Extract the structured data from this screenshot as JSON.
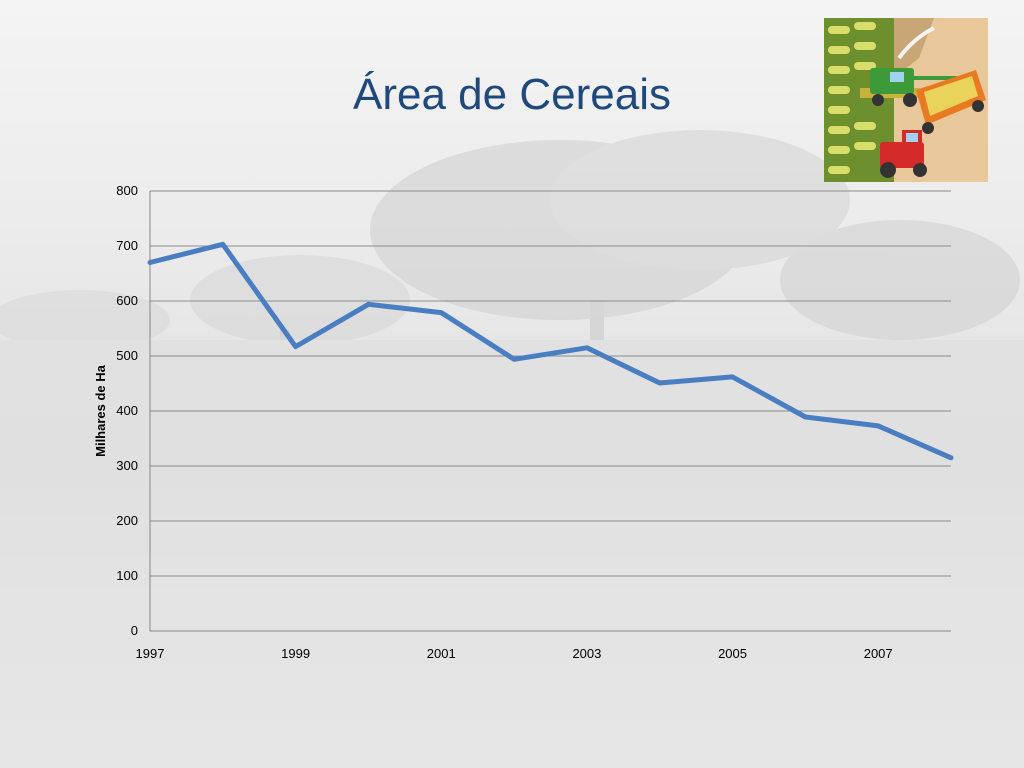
{
  "slide": {
    "title": "Área de Cereais",
    "clipart_icon": "harvest-tractors-icon"
  },
  "chart_data": {
    "type": "line",
    "ylabel": "Milhares de Ha",
    "xlabel": "",
    "ylim": [
      0,
      800
    ],
    "yticks": [
      0,
      100,
      200,
      300,
      400,
      500,
      600,
      700,
      800
    ],
    "xlim": [
      1997,
      2008
    ],
    "xticks": [
      1997,
      1999,
      2001,
      2003,
      2005,
      2007
    ],
    "grid": true,
    "legend": "none",
    "series": [
      {
        "color": "#4a7ec2",
        "x": [
          1997,
          1998,
          1999,
          2000,
          2001,
          2002,
          2003,
          2004,
          2005,
          2006,
          2007,
          2008
        ],
        "values": [
          670,
          703,
          517,
          594,
          579,
          494,
          515,
          451,
          462,
          389,
          373,
          315
        ]
      }
    ]
  }
}
